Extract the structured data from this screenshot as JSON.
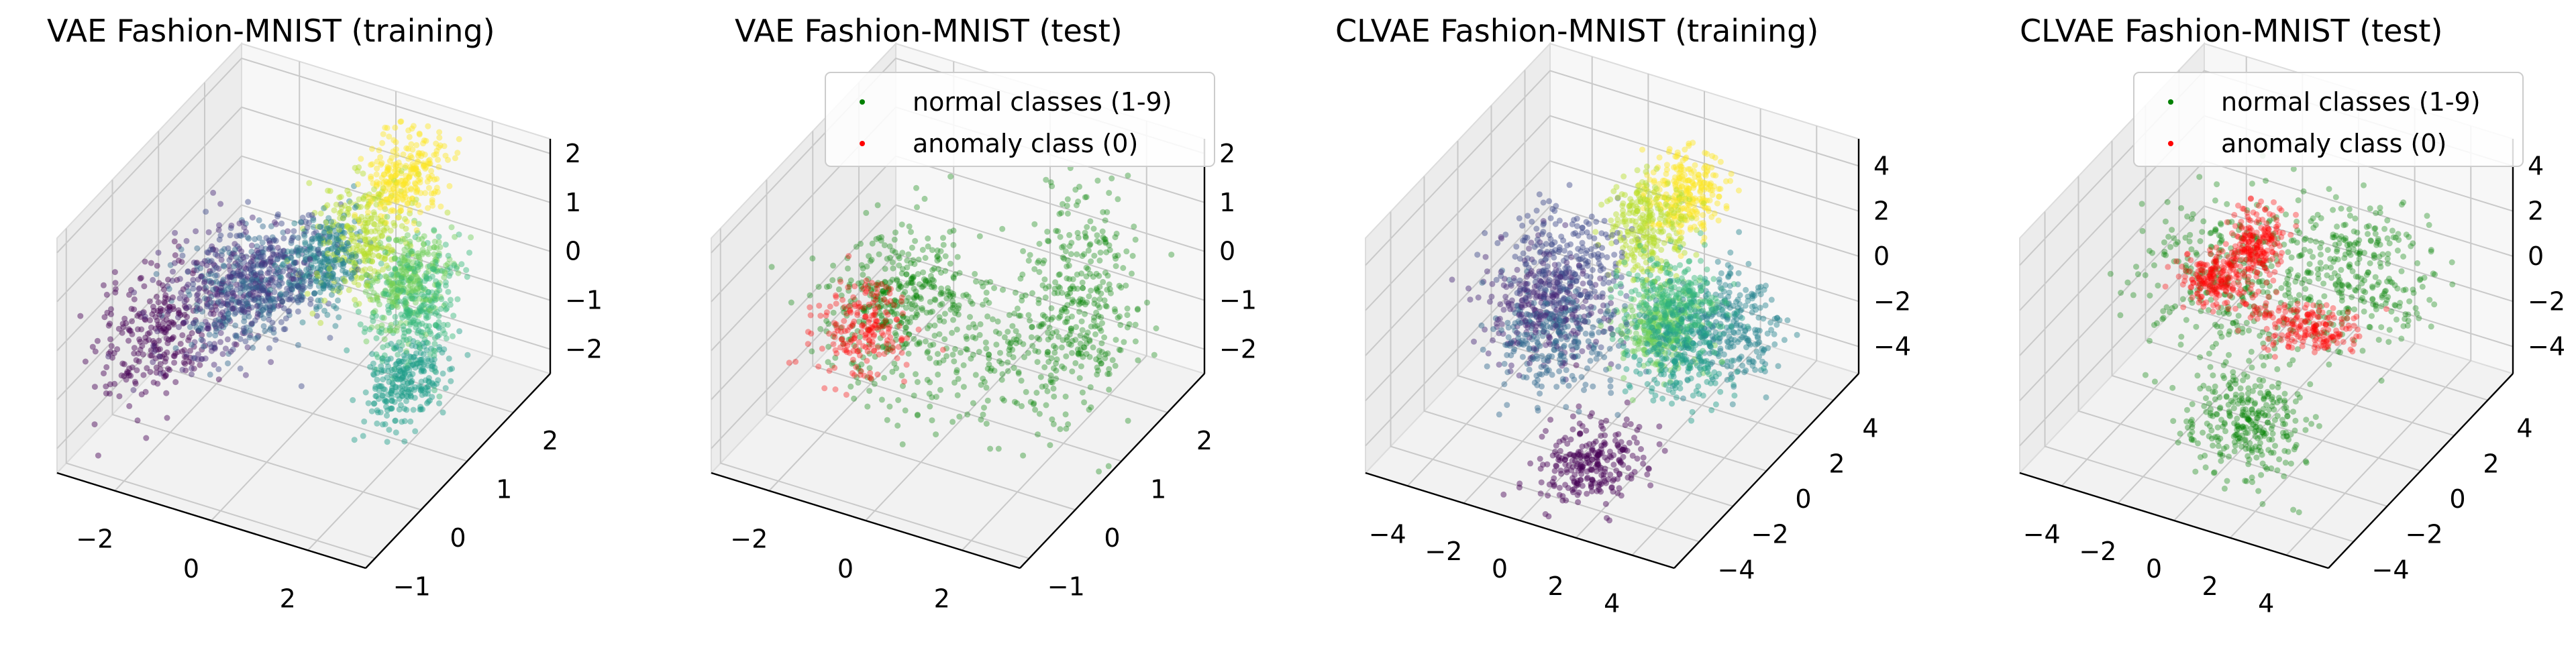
{
  "legend": {
    "normal_label": "normal classes (1-9)",
    "anomaly_label": "anomaly class (0)",
    "normal_color": "#008000",
    "anomaly_color": "#ff0000"
  },
  "colors": {
    "viridis": [
      "#440154",
      "#482878",
      "#3e4989",
      "#31688e",
      "#26828e",
      "#1f9e89",
      "#35b779",
      "#6ece58",
      "#b5de2b",
      "#fde725"
    ]
  },
  "chart_data": [
    {
      "type": "scatter",
      "title": "VAE Fashion-MNIST (training)",
      "color_mode": "class",
      "legend": false,
      "xlim": [
        -3.2,
        3.2
      ],
      "ylim": [
        -1.2,
        2.8
      ],
      "zlim": [
        -2.5,
        2.3
      ],
      "xticks": [
        "−2",
        "0",
        "2"
      ],
      "xtick_values": [
        -2,
        0,
        2
      ],
      "yticks": [
        "−1",
        "0",
        "1",
        "2"
      ],
      "ytick_values": [
        -1,
        0,
        1,
        2
      ],
      "zticks": [
        "−2",
        "−1",
        "0",
        "1",
        "2"
      ],
      "ztick_values": [
        -2,
        -1,
        0,
        1,
        2
      ],
      "clusters": [
        {
          "class": 0,
          "center": [
            -2.3,
            0.0,
            -0.6
          ],
          "spread": [
            0.45,
            0.45,
            0.55
          ]
        },
        {
          "class": 1,
          "center": [
            -1.3,
            0.5,
            0.1
          ],
          "spread": [
            0.55,
            0.5,
            0.5
          ]
        },
        {
          "class": 2,
          "center": [
            -0.7,
            0.8,
            0.3
          ],
          "spread": [
            0.5,
            0.45,
            0.45
          ]
        },
        {
          "class": 3,
          "center": [
            -1.0,
            0.6,
            0.0
          ],
          "spread": [
            0.5,
            0.4,
            0.4
          ]
        },
        {
          "class": 4,
          "center": [
            0.1,
            1.2,
            0.5
          ],
          "spread": [
            0.3,
            0.3,
            0.4
          ]
        },
        {
          "class": 5,
          "center": [
            1.9,
            1.0,
            -1.3
          ],
          "spread": [
            0.3,
            0.3,
            0.3
          ]
        },
        {
          "class": 6,
          "center": [
            1.6,
            1.6,
            -0.4
          ],
          "spread": [
            0.35,
            0.35,
            0.5
          ]
        },
        {
          "class": 7,
          "center": [
            1.2,
            1.8,
            -0.2
          ],
          "spread": [
            0.3,
            0.3,
            0.4
          ]
        },
        {
          "class": 8,
          "center": [
            0.4,
            1.6,
            0.6
          ],
          "spread": [
            0.35,
            0.35,
            0.5
          ]
        },
        {
          "class": 9,
          "center": [
            0.7,
            2.3,
            1.3
          ],
          "spread": [
            0.3,
            0.3,
            0.35
          ]
        }
      ]
    },
    {
      "type": "scatter",
      "title": "VAE Fashion-MNIST (test)",
      "color_mode": "anomaly",
      "legend": true,
      "legend_position": "top-right",
      "xlim": [
        -3.2,
        3.2
      ],
      "ylim": [
        -1.2,
        2.8
      ],
      "zlim": [
        -2.5,
        2.3
      ],
      "xticks": [
        "−2",
        "0",
        "2"
      ],
      "xtick_values": [
        -2,
        0,
        2
      ],
      "yticks": [
        "−1",
        "0",
        "1",
        "2"
      ],
      "ytick_values": [
        -1,
        0,
        1,
        2
      ],
      "zticks": [
        "−2",
        "−1",
        "0",
        "1",
        "2"
      ],
      "ztick_values": [
        -2,
        -1,
        0,
        1,
        2
      ],
      "clusters": [
        {
          "label": "normal",
          "center": [
            -1.1,
            0.5,
            0.0
          ],
          "spread": [
            0.55,
            0.45,
            0.55
          ]
        },
        {
          "label": "normal",
          "center": [
            1.8,
            1.6,
            -0.2
          ],
          "spread": [
            0.45,
            0.45,
            1.0
          ]
        },
        {
          "label": "normal",
          "center": [
            0.2,
            1.0,
            -1.0
          ],
          "spread": [
            1.3,
            0.6,
            0.7
          ]
        },
        {
          "label": "anomaly",
          "center": [
            -1.4,
            0.2,
            -0.4
          ],
          "spread": [
            0.4,
            0.3,
            0.4
          ]
        }
      ]
    },
    {
      "type": "scatter",
      "title": "CLVAE Fashion-MNIST (training)",
      "color_mode": "class",
      "legend": false,
      "xlim": [
        -5.5,
        5.5
      ],
      "ylim": [
        -5.5,
        5.5
      ],
      "zlim": [
        -5.2,
        5.2
      ],
      "xticks": [
        "−4",
        "−2",
        "0",
        "2",
        "4"
      ],
      "xtick_values": [
        -4,
        -2,
        0,
        2,
        4
      ],
      "yticks": [
        "−4",
        "−2",
        "0",
        "2",
        "4"
      ],
      "ytick_values": [
        -4,
        -2,
        0,
        2,
        4
      ],
      "zticks": [
        "−4",
        "−2",
        "0",
        "2",
        "4"
      ],
      "ztick_values": [
        -4,
        -2,
        0,
        2,
        4
      ],
      "clusters": [
        {
          "class": 0,
          "center": [
            1.0,
            -3.0,
            -4.2
          ],
          "spread": [
            0.8,
            0.8,
            0.6
          ]
        },
        {
          "class": 1,
          "center": [
            -2.2,
            -0.5,
            -0.5
          ],
          "spread": [
            1.0,
            0.8,
            1.0
          ]
        },
        {
          "class": 2,
          "center": [
            -2.0,
            0.5,
            0.8
          ],
          "spread": [
            1.0,
            0.9,
            1.0
          ]
        },
        {
          "class": 3,
          "center": [
            -1.5,
            -1.0,
            -1.3
          ],
          "spread": [
            1.0,
            0.8,
            0.9
          ]
        },
        {
          "class": 4,
          "center": [
            3.2,
            1.5,
            -0.8
          ],
          "spread": [
            0.8,
            0.8,
            1.1
          ]
        },
        {
          "class": 5,
          "center": [
            2.5,
            0.0,
            -1.0
          ],
          "spread": [
            0.8,
            0.7,
            1.0
          ]
        },
        {
          "class": 6,
          "center": [
            1.8,
            0.5,
            0.5
          ],
          "spread": [
            0.8,
            0.7,
            0.9
          ]
        },
        {
          "class": 7,
          "center": [
            1.2,
            0.8,
            -1.2
          ],
          "spread": [
            0.6,
            0.6,
            0.8
          ]
        },
        {
          "class": 8,
          "center": [
            0.2,
            1.8,
            2.2
          ],
          "spread": [
            0.6,
            0.6,
            1.0
          ]
        },
        {
          "class": 9,
          "center": [
            0.8,
            3.0,
            2.8
          ],
          "spread": [
            0.6,
            0.6,
            0.8
          ]
        }
      ]
    },
    {
      "type": "scatter",
      "title": "CLVAE Fashion-MNIST (test)",
      "color_mode": "anomaly",
      "legend": true,
      "legend_position": "top-right",
      "xlim": [
        -5.5,
        5.5
      ],
      "ylim": [
        -5.5,
        5.5
      ],
      "zlim": [
        -5.2,
        5.2
      ],
      "xticks": [
        "−4",
        "−2",
        "0",
        "2",
        "4"
      ],
      "xtick_values": [
        -4,
        -2,
        0,
        2,
        4
      ],
      "yticks": [
        "−4",
        "−2",
        "0",
        "2",
        "4"
      ],
      "ytick_values": [
        -4,
        -2,
        0,
        2,
        4
      ],
      "zticks": [
        "−4",
        "−2",
        "0",
        "2",
        "4"
      ],
      "ztick_values": [
        -4,
        -2,
        0,
        2,
        4
      ],
      "clusters": [
        {
          "label": "normal",
          "center": [
            -1.5,
            0.5,
            0.3
          ],
          "spread": [
            1.4,
            1.2,
            1.6
          ]
        },
        {
          "label": "normal",
          "center": [
            2.0,
            2.0,
            0.5
          ],
          "spread": [
            1.2,
            1.0,
            1.4
          ]
        },
        {
          "label": "normal",
          "center": [
            0.8,
            -2.5,
            -3.0
          ],
          "spread": [
            1.0,
            0.8,
            1.0
          ]
        },
        {
          "label": "anomaly",
          "center": [
            -1.8,
            0.0,
            0.5
          ],
          "spread": [
            0.5,
            0.5,
            0.4
          ]
        },
        {
          "label": "anomaly",
          "center": [
            0.8,
            0.8,
            -1.2
          ],
          "spread": [
            0.9,
            0.5,
            0.3
          ]
        },
        {
          "label": "anomaly",
          "center": [
            -1.0,
            1.2,
            1.5
          ],
          "spread": [
            0.4,
            0.4,
            0.7
          ]
        }
      ]
    }
  ]
}
